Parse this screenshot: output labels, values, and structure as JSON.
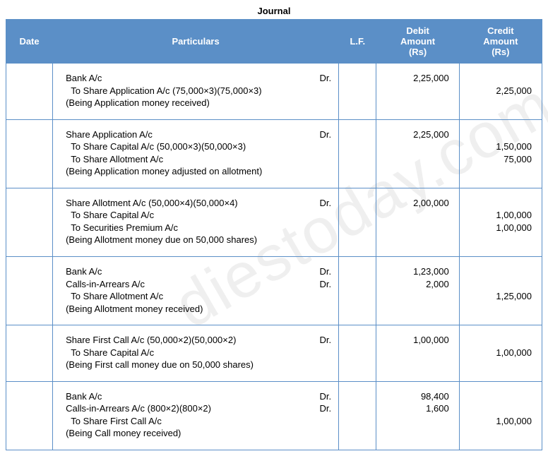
{
  "watermark_text": "diestoday.com",
  "title": "Journal",
  "header_bg": "#5b8fc7",
  "header_fg": "#ffffff",
  "columns": {
    "date": "Date",
    "particulars": "Particulars",
    "lf": "L.F.",
    "debit": "Debit Amount (Rs)",
    "credit": "Credit Amount (Rs)"
  },
  "entries": [
    {
      "lines": [
        {
          "text": "Bank A/c",
          "dr": "Dr.",
          "indent": false
        },
        {
          "text": "  To Share Application A/c (75,000×3)(75,000×3)",
          "dr": "",
          "indent": false
        },
        {
          "text": "(Being Application money received)",
          "dr": "",
          "indent": false
        }
      ],
      "debit_lines": [
        "2,25,000",
        "",
        ""
      ],
      "credit_lines": [
        "",
        "2,25,000",
        ""
      ]
    },
    {
      "lines": [
        {
          "text": "Share Application  A/c",
          "dr": "Dr.",
          "indent": false
        },
        {
          "text": "  To Share Capital A/c (50,000×3)(50,000×3)",
          "dr": "",
          "indent": false
        },
        {
          "text": "  To Share Allotment A/c",
          "dr": "",
          "indent": false
        },
        {
          "text": "(Being Application money adjusted on allotment)",
          "dr": "",
          "indent": false
        }
      ],
      "debit_lines": [
        "2,25,000",
        "",
        "",
        ""
      ],
      "credit_lines": [
        "",
        "1,50,000",
        "75,000",
        ""
      ]
    },
    {
      "lines": [
        {
          "text": "Share Allotment A/c (50,000×4)(50,000×4)",
          "dr": "Dr.",
          "indent": false
        },
        {
          "text": "  To Share Capital A/c",
          "dr": "",
          "indent": false
        },
        {
          "text": "  To Securities Premium A/c",
          "dr": "",
          "indent": false
        },
        {
          "text": "(Being Allotment money due on 50,000 shares)",
          "dr": "",
          "indent": false
        }
      ],
      "debit_lines": [
        "2,00,000",
        "",
        "",
        ""
      ],
      "credit_lines": [
        "",
        "1,00,000",
        "1,00,000",
        ""
      ]
    },
    {
      "lines": [
        {
          "text": "Bank A/c",
          "dr": "Dr.",
          "indent": false
        },
        {
          "text": "Calls-in-Arrears A/c",
          "dr": "Dr.",
          "indent": false
        },
        {
          "text": "  To Share Allotment A/c",
          "dr": "",
          "indent": false
        },
        {
          "text": "(Being Allotment money received)",
          "dr": "",
          "indent": false
        }
      ],
      "debit_lines": [
        "1,23,000",
        "2,000",
        "",
        ""
      ],
      "credit_lines": [
        "",
        "",
        "1,25,000",
        ""
      ]
    },
    {
      "lines": [
        {
          "text": "Share First Call  A/c (50,000×2)(50,000×2)",
          "dr": "Dr.",
          "indent": false
        },
        {
          "text": "  To Share Capital A/c",
          "dr": "",
          "indent": false
        },
        {
          "text": "(Being First call money due on 50,000 shares)",
          "dr": "",
          "indent": false
        }
      ],
      "debit_lines": [
        "1,00,000",
        "",
        ""
      ],
      "credit_lines": [
        "",
        "1,00,000",
        ""
      ]
    },
    {
      "lines": [
        {
          "text": "Bank A/c",
          "dr": "Dr.",
          "indent": false
        },
        {
          "text": "Calls-in-Arrears A/c (800×2)(800×2)",
          "dr": "Dr.",
          "indent": false
        },
        {
          "text": "  To Share First Call A/c",
          "dr": "",
          "indent": false
        },
        {
          "text": "(Being Call money received)",
          "dr": "",
          "indent": false
        }
      ],
      "debit_lines": [
        "98,400",
        "1,600",
        "",
        ""
      ],
      "credit_lines": [
        "",
        "",
        "1,00,000",
        ""
      ]
    }
  ]
}
